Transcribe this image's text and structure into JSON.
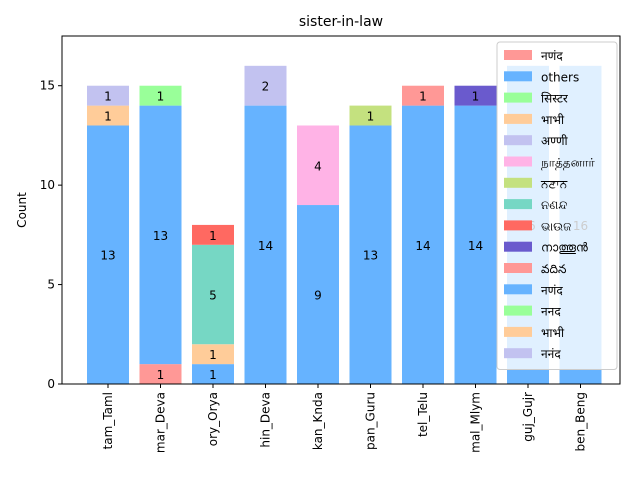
{
  "chart_data": {
    "type": "bar",
    "stacked": true,
    "title": "sister-in-law",
    "xlabel": "",
    "ylabel": "Count",
    "ylim": [
      0,
      17.5
    ],
    "yticks": [
      0,
      5,
      10,
      15
    ],
    "grid": false,
    "legend_placement": "top-right",
    "categories": [
      "tam_Taml",
      "mar_Deva",
      "ory_Orya",
      "hin_Deva",
      "kan_Knda",
      "pan_Guru",
      "tel_Telu",
      "mal_Mlym",
      "guj_Gujr",
      "ben_Beng"
    ],
    "series": [
      {
        "name": "नणंद",
        "color": "#ff9896",
        "values": [
          0,
          1,
          0,
          0,
          0,
          0,
          0,
          0,
          0,
          0
        ]
      },
      {
        "name": "others",
        "color": "#66b3ff",
        "values": [
          13,
          13,
          1,
          14,
          9,
          13,
          14,
          14,
          16,
          16
        ]
      },
      {
        "name": "सिस्टर",
        "color": "#99ff99",
        "values": [
          0,
          1,
          0,
          0,
          0,
          0,
          0,
          0,
          0,
          0
        ]
      },
      {
        "name": "भाभी",
        "color": "#ffcc99",
        "values": [
          1,
          0,
          1,
          0,
          0,
          0,
          0,
          0,
          0,
          0
        ]
      },
      {
        "name": "अण्णी",
        "color": "#c2c2f0",
        "values": [
          1,
          0,
          0,
          2,
          0,
          0,
          0,
          0,
          0,
          0
        ]
      },
      {
        "name": "நாத்தனார்",
        "color": "#ffb3e6",
        "values": [
          0,
          0,
          0,
          0,
          4,
          0,
          0,
          0,
          0,
          0
        ]
      },
      {
        "name": "ਨਣਾਨ",
        "color": "#c4e17f",
        "values": [
          0,
          0,
          0,
          0,
          0,
          1,
          0,
          0,
          0,
          0
        ]
      },
      {
        "name": "ନଣନ୍ଦ",
        "color": "#76d7c4",
        "values": [
          0,
          0,
          5,
          0,
          0,
          0,
          0,
          0,
          0,
          0
        ]
      },
      {
        "name": "ଭାଉଜ",
        "color": "#ff6961",
        "values": [
          0,
          0,
          1,
          0,
          0,
          0,
          0,
          0,
          0,
          0
        ]
      },
      {
        "name": "നാത്തൂൻ",
        "color": "#6a5acd",
        "values": [
          0,
          0,
          0,
          0,
          0,
          0,
          0,
          1,
          0,
          0
        ]
      },
      {
        "name": "వదిన",
        "color": "#ff9896",
        "values": [
          0,
          0,
          0,
          0,
          0,
          0,
          1,
          0,
          0,
          0
        ]
      },
      {
        "name": "नणंद",
        "color": "#66b3ff",
        "values": [
          0,
          0,
          0,
          0,
          0,
          0,
          0,
          0,
          0,
          0
        ]
      },
      {
        "name": "ननद",
        "color": "#99ff99",
        "values": [
          0,
          0,
          0,
          0,
          0,
          0,
          0,
          0,
          0,
          0
        ]
      },
      {
        "name": "भाभी",
        "color": "#ffcc99",
        "values": [
          0,
          0,
          0,
          0,
          0,
          0,
          0,
          0,
          0,
          0
        ]
      },
      {
        "name": "ननंद",
        "color": "#c2c2f0",
        "values": [
          0,
          0,
          0,
          0,
          0,
          0,
          0,
          0,
          0,
          0
        ]
      }
    ]
  }
}
